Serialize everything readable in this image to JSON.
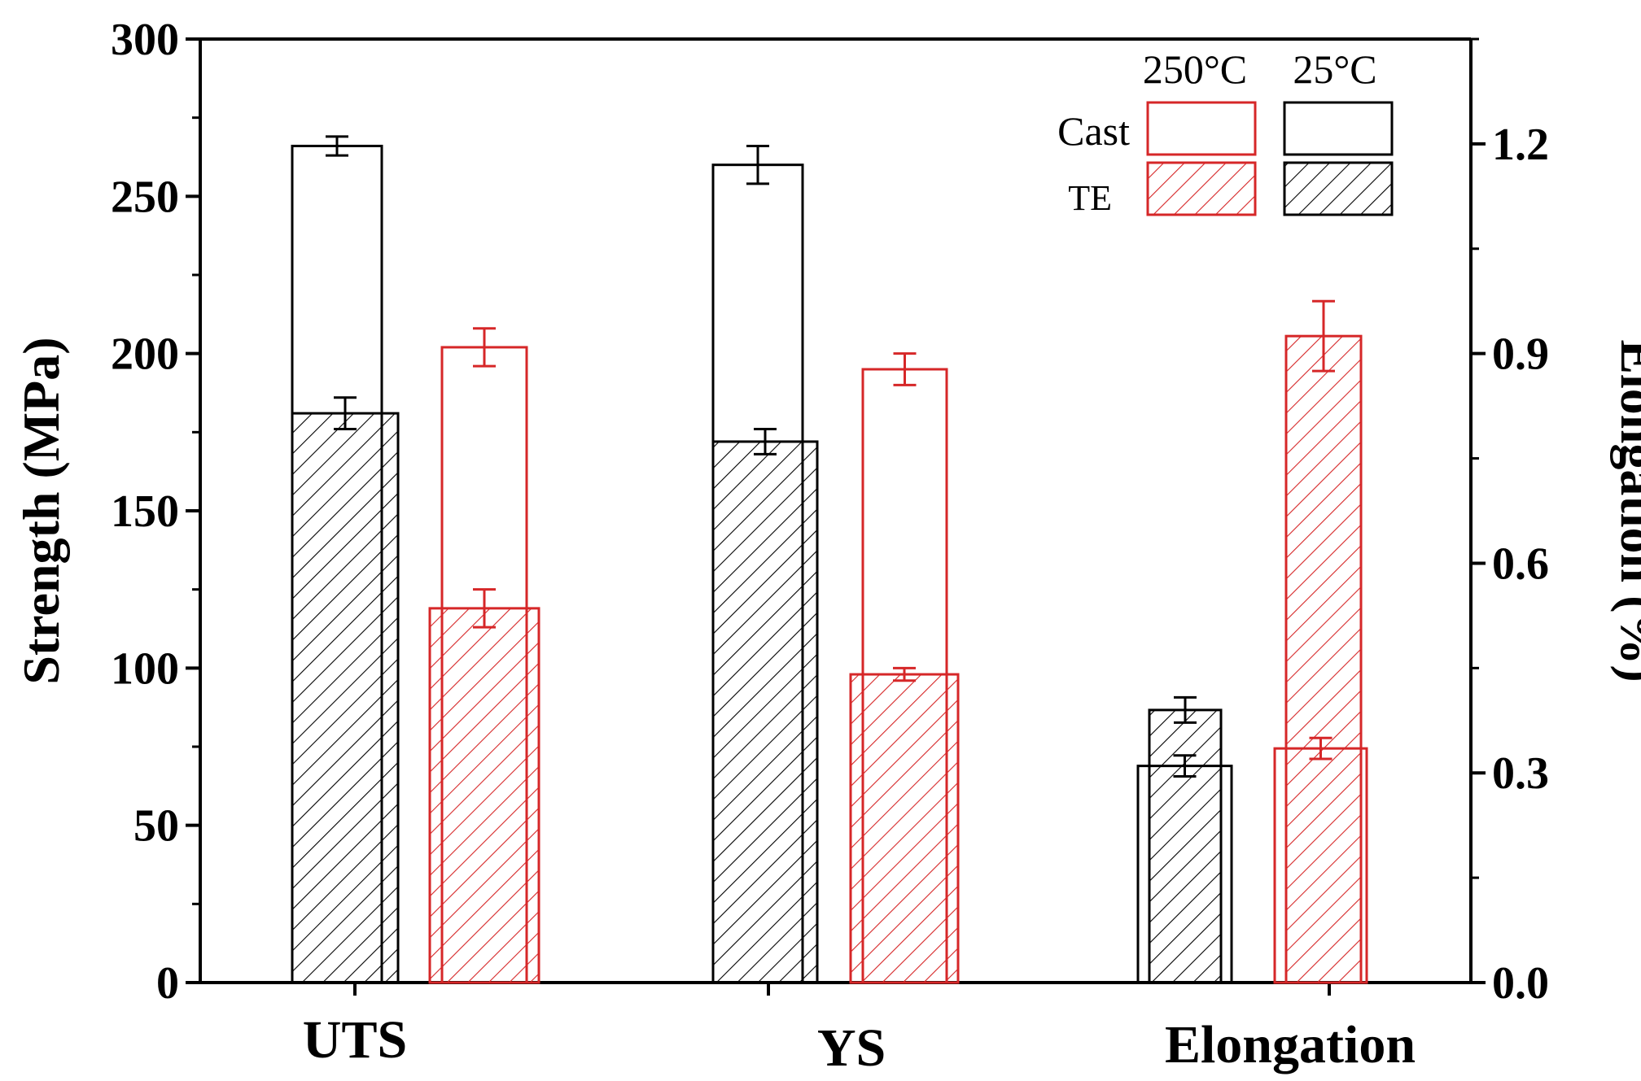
{
  "chart_data": {
    "type": "bar",
    "categories": [
      "UTS",
      "YS",
      "Elongation"
    ],
    "left_axis": {
      "label": "Strength (MPa)",
      "range": [
        0,
        300
      ],
      "ticks": [
        "0",
        "50",
        "100",
        "150",
        "200",
        "250",
        "300"
      ]
    },
    "right_axis": {
      "label": "Elongation (%)",
      "range": [
        0,
        1.35
      ],
      "ticks": [
        "0.0",
        "0.3",
        "0.6",
        "0.9",
        "1.2"
      ]
    },
    "legend": {
      "columns": [
        "250°C",
        "25°C"
      ],
      "rows": [
        "Cast",
        "TE"
      ],
      "placement": "top-right"
    },
    "series": [
      {
        "name": "Cast 25°C",
        "color": "#000000",
        "pattern": "hollow",
        "values": [
          266,
          260,
          0.31
        ],
        "errors": [
          3,
          6,
          0.015
        ]
      },
      {
        "name": "TE 25°C",
        "color": "#000000",
        "pattern": "hatched",
        "values": [
          181,
          172,
          0.39
        ],
        "errors": [
          5,
          4,
          0.018
        ]
      },
      {
        "name": "Cast 250°C",
        "color": "#d62728",
        "pattern": "hollow",
        "values": [
          202,
          195,
          0.335
        ],
        "errors": [
          6,
          5,
          0.015
        ]
      },
      {
        "name": "TE 250°C",
        "color": "#d62728",
        "pattern": "hatched",
        "values": [
          119,
          98,
          0.925
        ],
        "errors": [
          6,
          2,
          0.05
        ]
      }
    ]
  }
}
